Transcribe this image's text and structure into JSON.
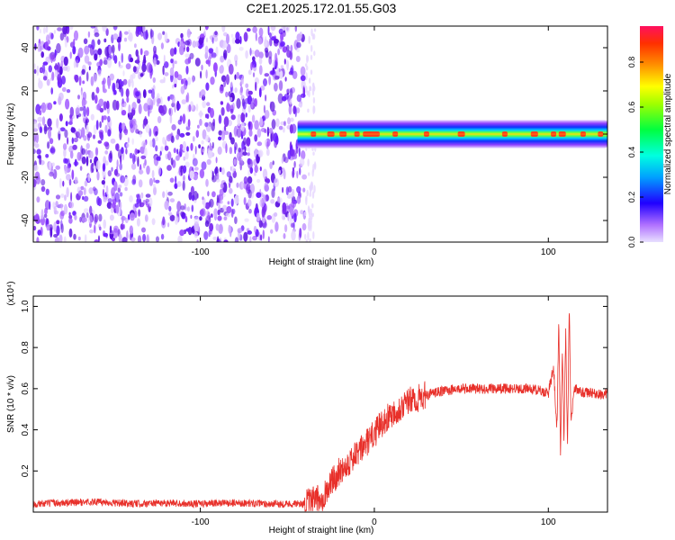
{
  "figure": {
    "title": "C2E1.2025.172.01.55.G03"
  },
  "chart_data": [
    {
      "type": "heatmap",
      "xlabel": "Height of straight line (km)",
      "ylabel": "Frequency (Hz)",
      "xlim": [
        -196,
        134
      ],
      "ylim": [
        -50,
        50
      ],
      "x_ticks": [
        -100,
        0,
        100
      ],
      "y_ticks": [
        -40,
        -20,
        0,
        20,
        40
      ],
      "colorbar": {
        "label": "Normalized spectral amplitude",
        "range": [
          0,
          0.96
        ],
        "ticks": [
          0.0,
          0.2,
          0.4,
          0.6,
          0.8
        ],
        "colormap": "rainbow (magenta-blue-cyan-green-yellow-orange-red)"
      },
      "regions": [
        {
          "x_range": [
            -196,
            -40
          ],
          "pattern": "broadband noise across all frequencies",
          "amplitude_range": [
            0.0,
            0.15
          ]
        },
        {
          "x_range": [
            -40,
            134
          ],
          "pattern": "narrow band centered at 0 Hz, about ±4 Hz wide",
          "amplitude_range": [
            0.3,
            0.96
          ]
        }
      ],
      "grid": false
    },
    {
      "type": "line",
      "xlabel": "Height of straight line (km)",
      "ylabel": "SNR (10 * v/v)",
      "y_scale_label": "(x10⁴)",
      "xlim": [
        -196,
        134
      ],
      "ylim": [
        0,
        1.05
      ],
      "x_ticks": [
        -100,
        0,
        100
      ],
      "y_ticks": [
        0.2,
        0.4,
        0.6,
        0.8,
        1.0
      ],
      "color": "#e8302a",
      "series": [
        {
          "x": [
            -196,
            -180,
            -160,
            -140,
            -120,
            -100,
            -80,
            -60,
            -40,
            -30,
            -25,
            -20,
            -15,
            -10,
            -5,
            0,
            5,
            10,
            15,
            20,
            25,
            30,
            40,
            50,
            60,
            70,
            80,
            90,
            100,
            103,
            105,
            106,
            107,
            108,
            109,
            110,
            111,
            112,
            113,
            115,
            120,
            125,
            130,
            134
          ],
          "y": [
            0.04,
            0.045,
            0.05,
            0.04,
            0.045,
            0.04,
            0.045,
            0.04,
            0.04,
            0.07,
            0.14,
            0.2,
            0.24,
            0.28,
            0.33,
            0.38,
            0.44,
            0.48,
            0.51,
            0.54,
            0.55,
            0.57,
            0.59,
            0.6,
            0.6,
            0.6,
            0.6,
            0.6,
            0.58,
            0.7,
            0.4,
            0.96,
            0.3,
            0.78,
            0.35,
            0.9,
            0.3,
            1.02,
            0.45,
            0.6,
            0.58,
            0.58,
            0.57,
            0.58
          ]
        }
      ],
      "grid": false
    }
  ]
}
